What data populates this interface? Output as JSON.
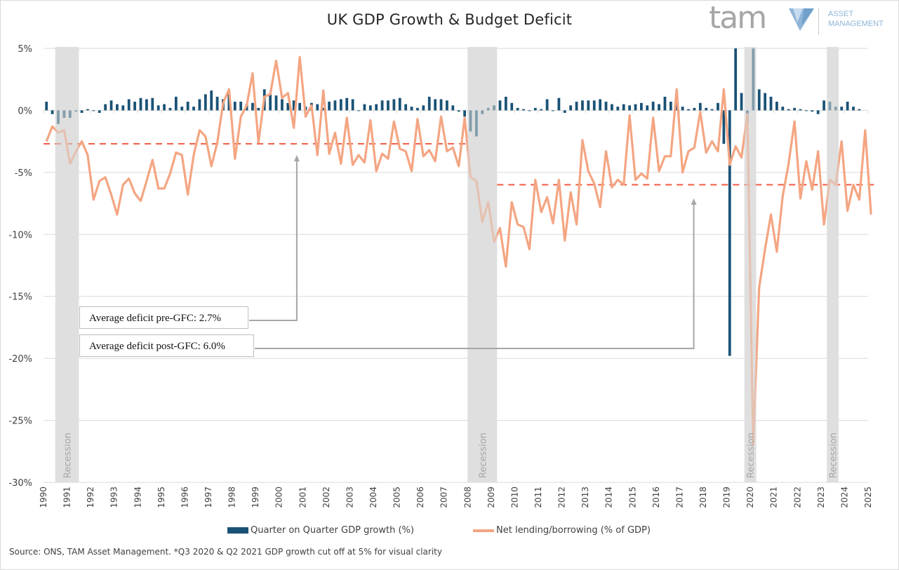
{
  "header": {
    "title": "UK GDP Growth & Budget Deficit",
    "logo": {
      "word": "tam",
      "sub_line1": "ASSET",
      "sub_line2": "MANAGEMENT",
      "icon": "tam-arrow-logo-icon"
    }
  },
  "annotations": {
    "pre_gfc": "Average deficit pre-GFC: 2.7%",
    "post_gfc": "Average deficit post-GFC: 6.0%"
  },
  "legend": {
    "bar_label": "Quarter on Quarter GDP growth (%)",
    "line_label": "Net lending/borrowing (% of GDP)"
  },
  "footer": {
    "source": "Source: ONS, TAM Asset Management. *Q3 2020 & Q2 2021 GDP growth cut off at 5% for visual clarity"
  },
  "colors": {
    "bar": "#1a5276",
    "line": "#f4a582",
    "avg_line": "#f15a40",
    "recession": "#d9d9d9",
    "grid": "#d9d9d9",
    "arrow": "#a6a6a6"
  },
  "chart_data": {
    "type": "bar+line",
    "title": "UK GDP Growth & Budget Deficit",
    "xlabel": "",
    "ylabel": "",
    "ylim": [
      -30,
      5
    ],
    "yticks": [
      "5%",
      "0%",
      "-5%",
      "-10%",
      "-15%",
      "-20%",
      "-25%",
      "-30%"
    ],
    "ytick_values": [
      5,
      0,
      -5,
      -10,
      -15,
      -20,
      -25,
      -30
    ],
    "x_start": 1990,
    "x_end": 2025,
    "x_frequency": "quarterly",
    "xticks": [
      "1990",
      "1991",
      "1992",
      "1993",
      "1994",
      "1995",
      "1996",
      "1997",
      "1998",
      "1999",
      "2000",
      "2001",
      "2002",
      "2003",
      "2004",
      "2005",
      "2006",
      "2007",
      "2008",
      "2009",
      "2010",
      "2011",
      "2012",
      "2013",
      "2014",
      "2015",
      "2016",
      "2017",
      "2018",
      "2019",
      "2020",
      "2021",
      "2022",
      "2023",
      "2024",
      "2025"
    ],
    "grid": true,
    "legend_position": "bottom",
    "recessions": [
      {
        "start": 1990.5,
        "end": 1991.5,
        "label": "Recession"
      },
      {
        "start": 2008.0,
        "end": 2009.25,
        "label": "Recession"
      },
      {
        "start": 2019.75,
        "end": 2020.25,
        "label": "Recession"
      },
      {
        "start": 2023.25,
        "end": 2023.75,
        "label": "Recession"
      }
    ],
    "averages": [
      {
        "name": "Average deficit pre-GFC",
        "value": -2.7,
        "start": 1990,
        "end": 2008
      },
      {
        "name": "Average deficit post-GFC",
        "value": -6.0,
        "start": 2009.25,
        "end": 2025.25
      }
    ],
    "series": [
      {
        "name": "Quarter on Quarter GDP growth (%)",
        "type": "bar",
        "clip_max": 5,
        "values": [
          0.7,
          -0.3,
          -1.1,
          -0.6,
          -0.6,
          -0.1,
          -0.2,
          0.1,
          0.0,
          -0.2,
          0.5,
          0.8,
          0.5,
          0.4,
          0.9,
          0.7,
          1.0,
          0.9,
          1.0,
          0.4,
          0.5,
          0.2,
          1.1,
          0.3,
          0.7,
          0.3,
          0.9,
          1.3,
          1.6,
          1.1,
          0.9,
          1.5,
          0.7,
          0.7,
          0.5,
          0.6,
          0.2,
          1.7,
          1.3,
          1.2,
          0.9,
          0.6,
          0.8,
          0.6,
          0.3,
          0.6,
          0.5,
          0.2,
          0.7,
          0.8,
          0.9,
          1.0,
          0.9,
          0.0,
          0.5,
          0.4,
          0.5,
          0.8,
          0.8,
          0.9,
          1.0,
          0.5,
          0.3,
          0.2,
          0.4,
          1.1,
          0.9,
          0.9,
          0.8,
          0.4,
          -0.1,
          -0.5,
          -1.7,
          -2.1,
          -0.3,
          0.2,
          0.4,
          0.8,
          1.1,
          0.6,
          0.2,
          0.1,
          0.0,
          0.2,
          0.1,
          0.9,
          0.0,
          1.0,
          -0.2,
          0.4,
          0.7,
          0.8,
          0.8,
          0.8,
          0.9,
          0.7,
          0.5,
          0.3,
          0.5,
          0.4,
          0.5,
          0.6,
          0.4,
          0.7,
          0.5,
          1.1,
          0.7,
          0.7,
          0.3,
          0.1,
          0.2,
          0.6,
          0.2,
          0.1,
          0.6,
          -2.7,
          -19.8,
          5.0,
          1.4,
          -1.1,
          5.0,
          1.7,
          1.4,
          1.1,
          0.7,
          0.3,
          0.1,
          0.2,
          0.1,
          0.0,
          -0.1,
          -0.3,
          0.8,
          0.7,
          0.3,
          0.3,
          0.7,
          0.3,
          0.1
        ]
      },
      {
        "name": "Net lending/borrowing (% of GDP)",
        "type": "line",
        "values": [
          -2.5,
          -1.3,
          -1.8,
          -1.6,
          -4.3,
          -3.3,
          -2.5,
          -3.6,
          -7.2,
          -5.7,
          -5.4,
          -6.8,
          -8.4,
          -6.0,
          -5.5,
          -6.7,
          -7.3,
          -5.7,
          -4.0,
          -6.3,
          -6.3,
          -5.1,
          -3.4,
          -3.6,
          -6.8,
          -3.6,
          -1.6,
          -2.1,
          -4.5,
          -2.6,
          0.6,
          1.7,
          -3.9,
          -0.5,
          0.4,
          3.0,
          -2.6,
          1.1,
          1.3,
          4.0,
          1.0,
          1.4,
          -1.4,
          4.3,
          -0.5,
          0.4,
          -3.6,
          1.6,
          -3.5,
          -1.8,
          -4.3,
          -0.6,
          -4.4,
          -3.6,
          -4.2,
          -0.8,
          -4.9,
          -3.5,
          -3.9,
          -0.9,
          -3.1,
          -3.3,
          -4.9,
          -0.7,
          -3.7,
          -3.2,
          -4.1,
          -0.5,
          -3.3,
          -3.0,
          -4.5,
          -0.6,
          -5.4,
          -5.7,
          -9.0,
          -7.4,
          -10.6,
          -9.5,
          -12.6,
          -7.4,
          -9.2,
          -9.4,
          -11.2,
          -5.6,
          -8.2,
          -7.0,
          -9.1,
          -5.6,
          -10.5,
          -6.6,
          -9.2,
          -2.4,
          -4.9,
          -5.9,
          -7.8,
          -3.3,
          -6.2,
          -5.6,
          -6.0,
          -0.4,
          -5.6,
          -5.1,
          -5.5,
          -0.6,
          -4.9,
          -3.7,
          -3.7,
          1.7,
          -5.0,
          -3.3,
          -3.0,
          -0.1,
          -3.4,
          -2.5,
          -3.3,
          1.7,
          -4.4,
          -2.9,
          -3.8,
          -0.3,
          -27.0,
          -14.3,
          -11.2,
          -8.4,
          -11.4,
          -6.9,
          -4.3,
          -0.9,
          -7.1,
          -4.1,
          -6.4,
          -3.3,
          -9.2,
          -5.6,
          -6.0,
          -2.5,
          -8.1,
          -6.0,
          -7.2,
          -1.6,
          -8.4
        ]
      }
    ]
  }
}
